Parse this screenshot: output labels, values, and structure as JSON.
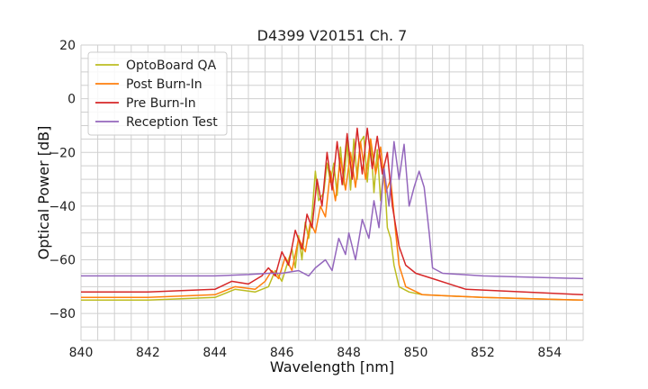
{
  "chart_data": {
    "type": "line",
    "title": "D4399 V20151 Ch. 7",
    "xlabel": "Wavelength [nm]",
    "ylabel": "Optical Power [dB]",
    "xlim": [
      840,
      855
    ],
    "ylim": [
      -90,
      20
    ],
    "xticks": [
      840,
      842,
      844,
      846,
      848,
      850,
      852,
      854
    ],
    "yticks": [
      -80,
      -60,
      -40,
      -20,
      0,
      20
    ],
    "grid": true,
    "legend_position": "upper left",
    "series": [
      {
        "name": "OptoBoard QA",
        "color": "#bcbd22",
        "x": [
          840,
          842,
          844,
          844.6,
          845.2,
          845.6,
          845.8,
          846.0,
          846.2,
          846.3,
          846.4,
          846.5,
          846.6,
          846.7,
          846.8,
          846.9,
          847.0,
          847.1,
          847.25,
          847.35,
          847.45,
          847.55,
          847.65,
          847.75,
          847.85,
          847.95,
          848.05,
          848.15,
          848.25,
          848.35,
          848.45,
          848.55,
          848.65,
          848.75,
          848.85,
          848.95,
          849.05,
          849.15,
          849.25,
          849.35,
          849.5,
          849.8,
          850.2,
          852,
          855
        ],
        "y": [
          -75,
          -75,
          -74,
          -71,
          -72,
          -70,
          -64,
          -68,
          -60,
          -56,
          -63,
          -51,
          -60,
          -46,
          -52,
          -43,
          -27,
          -38,
          -35,
          -24,
          -31,
          -24,
          -36,
          -18,
          -32,
          -16,
          -34,
          -15,
          -30,
          -16,
          -14,
          -31,
          -15,
          -35,
          -19,
          -38,
          -25,
          -48,
          -52,
          -62,
          -70,
          -72,
          -73,
          -74,
          -75
        ]
      },
      {
        "name": "Post Burn-In",
        "color": "#ff7f0e",
        "x": [
          840,
          842,
          844,
          844.6,
          845.2,
          845.5,
          845.7,
          845.9,
          846.1,
          846.3,
          846.5,
          846.7,
          846.85,
          847.0,
          847.15,
          847.3,
          847.45,
          847.6,
          847.75,
          847.9,
          848.05,
          848.2,
          848.35,
          848.5,
          848.65,
          848.8,
          848.95,
          849.1,
          849.25,
          849.4,
          849.5,
          849.7,
          850.2,
          852,
          855
        ],
        "y": [
          -74,
          -74,
          -73,
          -70,
          -71,
          -68,
          -64,
          -67,
          -59,
          -64,
          -52,
          -57,
          -46,
          -50,
          -40,
          -44,
          -27,
          -38,
          -22,
          -34,
          -20,
          -33,
          -16,
          -30,
          -15,
          -28,
          -18,
          -35,
          -30,
          -50,
          -62,
          -70,
          -73,
          -74,
          -75
        ]
      },
      {
        "name": "Pre Burn-In",
        "color": "#d62728",
        "x": [
          840,
          842,
          844,
          844.5,
          845.0,
          845.4,
          845.6,
          845.8,
          846.0,
          846.2,
          846.4,
          846.6,
          846.75,
          846.9,
          847.05,
          847.2,
          847.35,
          847.5,
          847.65,
          847.8,
          847.95,
          848.1,
          848.25,
          848.4,
          848.55,
          848.7,
          848.85,
          849.0,
          849.15,
          849.3,
          849.5,
          849.7,
          850.0,
          850.5,
          851.5,
          855
        ],
        "y": [
          -72,
          -72,
          -71,
          -68,
          -69,
          -66,
          -63,
          -66,
          -57,
          -62,
          -49,
          -56,
          -43,
          -48,
          -30,
          -40,
          -20,
          -34,
          -16,
          -32,
          -13,
          -30,
          -11,
          -28,
          -11,
          -26,
          -14,
          -28,
          -20,
          -40,
          -55,
          -62,
          -65,
          -67,
          -71,
          -73
        ]
      },
      {
        "name": "Reception Test",
        "color": "#9467bd",
        "x": [
          840,
          842,
          844,
          845,
          845.6,
          846.0,
          846.5,
          846.8,
          847.0,
          847.3,
          847.5,
          847.7,
          847.9,
          848.0,
          848.2,
          848.4,
          848.6,
          848.75,
          848.9,
          849.05,
          849.2,
          849.35,
          849.5,
          849.65,
          849.8,
          849.95,
          850.1,
          850.25,
          850.4,
          850.5,
          850.8,
          852,
          855
        ],
        "y": [
          -66,
          -66,
          -66,
          -65.5,
          -65,
          -65,
          -64,
          -66,
          -63,
          -60,
          -64,
          -52,
          -58,
          -50,
          -60,
          -45,
          -52,
          -38,
          -48,
          -26,
          -40,
          -16,
          -30,
          -17,
          -40,
          -33,
          -27,
          -33,
          -50,
          -63,
          -65,
          -66,
          -67
        ]
      }
    ]
  }
}
